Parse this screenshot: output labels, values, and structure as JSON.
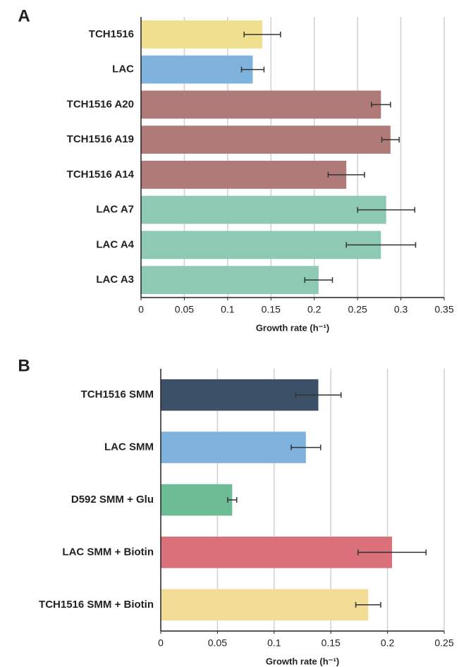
{
  "chart_data": [
    {
      "type": "bar",
      "panel": "A",
      "orientation": "horizontal",
      "xlabel": "Growth rate (h⁻¹)",
      "categories": [
        "TCH1516",
        "LAC",
        "TCH1516 A20",
        "TCH1516 A19",
        "TCH1516 A14",
        "LAC A7",
        "LAC A4",
        "LAC A3"
      ],
      "values": [
        0.14,
        0.129,
        0.277,
        0.288,
        0.237,
        0.283,
        0.277,
        0.205
      ],
      "errors": [
        0.021,
        0.013,
        0.011,
        0.01,
        0.021,
        0.033,
        0.04,
        0.016
      ],
      "colors": [
        "#f0df8f",
        "#7fb3dd",
        "#b07a78",
        "#b07a78",
        "#b07a78",
        "#8ec9b3",
        "#8ec9b3",
        "#8ec9b3"
      ],
      "xlim": [
        0,
        0.35
      ],
      "xticks": [
        0,
        0.05,
        0.1,
        0.15,
        0.2,
        0.25,
        0.3,
        0.35
      ],
      "grid": true
    },
    {
      "type": "bar",
      "panel": "B",
      "orientation": "horizontal",
      "xlabel": "Growth rate (h⁻¹)",
      "categories": [
        "TCH1516 SMM",
        "LAC SMM",
        "D592 SMM + Glu",
        "LAC SMM + Biotin",
        "TCH1516 SMM + Biotin"
      ],
      "values": [
        0.139,
        0.128,
        0.063,
        0.204,
        0.183
      ],
      "errors": [
        0.02,
        0.013,
        0.004,
        0.03,
        0.011
      ],
      "colors": [
        "#3c5068",
        "#7fb3dd",
        "#6dbb95",
        "#d9707a",
        "#f3dc96"
      ],
      "xlim": [
        0,
        0.25
      ],
      "xticks": [
        0,
        0.05,
        0.1,
        0.15,
        0.2,
        0.25
      ],
      "grid": true
    }
  ]
}
